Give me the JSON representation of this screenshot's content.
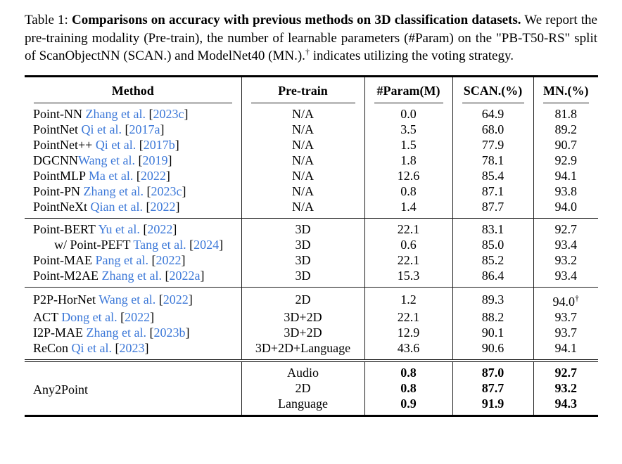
{
  "colors": {
    "link_blue": "#3c78d8",
    "rule_dark": "#1a1a1a"
  },
  "caption": {
    "prefix": "Table 1: ",
    "title_bold": "Comparisons on accuracy with previous methods on 3D classification datasets.",
    "body_before_dagger": " We report the pre-training modality (Pre-train), the number of learnable parameters (#Param) on the \"PB-T50-RS\" split of ScanObjectNN (SCAN.) and ModelNet40 (MN.).",
    "dagger": "†",
    "body_after_dagger": " indicates utilizing the voting strategy."
  },
  "table": {
    "columns": [
      "Method",
      "Pre-train",
      "#Param(M)",
      "SCAN.(%)",
      "MN.(%)"
    ],
    "groups": [
      {
        "rows": [
          {
            "method": [
              [
                "Point-NN ",
                "k"
              ],
              [
                "Zhang et al.",
                "b"
              ],
              [
                " [",
                "k"
              ],
              [
                "2023c",
                "b"
              ],
              [
                "]",
                "k"
              ]
            ],
            "cells": [
              "N/A",
              "0.0",
              "64.9",
              "81.8"
            ]
          },
          {
            "method": [
              [
                "PointNet ",
                "k"
              ],
              [
                "Qi et al.",
                "b"
              ],
              [
                " [",
                "k"
              ],
              [
                "2017a",
                "b"
              ],
              [
                "]",
                "k"
              ]
            ],
            "cells": [
              "N/A",
              "3.5",
              "68.0",
              "89.2"
            ]
          },
          {
            "method": [
              [
                "PointNet++ ",
                "k"
              ],
              [
                "Qi et al.",
                "b"
              ],
              [
                " [",
                "k"
              ],
              [
                "2017b",
                "b"
              ],
              [
                "]",
                "k"
              ]
            ],
            "cells": [
              "N/A",
              "1.5",
              "77.9",
              "90.7"
            ]
          },
          {
            "method": [
              [
                "DGCNN",
                "k"
              ],
              [
                "Wang et al.",
                "b"
              ],
              [
                " [",
                "k"
              ],
              [
                "2019",
                "b"
              ],
              [
                "]",
                "k"
              ]
            ],
            "cells": [
              "N/A",
              "1.8",
              "78.1",
              "92.9"
            ]
          },
          {
            "method": [
              [
                "PointMLP ",
                "k"
              ],
              [
                "Ma et al.",
                "b"
              ],
              [
                " [",
                "k"
              ],
              [
                "2022",
                "b"
              ],
              [
                "]",
                "k"
              ]
            ],
            "cells": [
              "N/A",
              "12.6",
              "85.4",
              "94.1"
            ]
          },
          {
            "method": [
              [
                "Point-PN ",
                "k"
              ],
              [
                "Zhang et al.",
                "b"
              ],
              [
                " [",
                "k"
              ],
              [
                "2023c",
                "b"
              ],
              [
                "]",
                "k"
              ]
            ],
            "cells": [
              "N/A",
              "0.8",
              "87.1",
              "93.8"
            ]
          },
          {
            "method": [
              [
                "PointNeXt ",
                "k"
              ],
              [
                "Qian et al.",
                "b"
              ],
              [
                " [",
                "k"
              ],
              [
                "2022",
                "b"
              ],
              [
                "]",
                "k"
              ]
            ],
            "cells": [
              "N/A",
              "1.4",
              "87.7",
              "94.0"
            ]
          }
        ]
      },
      {
        "rows": [
          {
            "method": [
              [
                "Point-BERT ",
                "k"
              ],
              [
                "Yu et al.",
                "b"
              ],
              [
                " [",
                "k"
              ],
              [
                "2022",
                "b"
              ],
              [
                "]",
                "k"
              ]
            ],
            "cells": [
              "3D",
              "22.1",
              "83.1",
              "92.7"
            ]
          },
          {
            "method": [
              [
                "w/ Point-PEFT ",
                "k"
              ],
              [
                "Tang et al.",
                "b"
              ],
              [
                " [",
                "k"
              ],
              [
                "2024",
                "b"
              ],
              [
                "]",
                "k"
              ]
            ],
            "indent": true,
            "cells": [
              "3D",
              "0.6",
              "85.0",
              "93.4"
            ]
          },
          {
            "method": [
              [
                "Point-MAE ",
                "k"
              ],
              [
                "Pang et al.",
                "b"
              ],
              [
                " [",
                "k"
              ],
              [
                "2022",
                "b"
              ],
              [
                "]",
                "k"
              ]
            ],
            "cells": [
              "3D",
              "22.1",
              "85.2",
              "93.2"
            ]
          },
          {
            "method": [
              [
                "Point-M2AE ",
                "k"
              ],
              [
                "Zhang et al.",
                "b"
              ],
              [
                " [",
                "k"
              ],
              [
                "2022a",
                "b"
              ],
              [
                "]",
                "k"
              ]
            ],
            "cells": [
              "3D",
              "15.3",
              "86.4",
              "93.4"
            ]
          }
        ]
      },
      {
        "rows": [
          {
            "method": [
              [
                "P2P-HorNet ",
                "k"
              ],
              [
                "Wang et al.",
                "b"
              ],
              [
                " [",
                "k"
              ],
              [
                "2022",
                "b"
              ],
              [
                "]",
                "k"
              ]
            ],
            "cells": [
              "2D",
              "1.2",
              "89.3",
              "94.0†"
            ]
          },
          {
            "method": [
              [
                "ACT ",
                "k"
              ],
              [
                "Dong et al.",
                "b"
              ],
              [
                " [",
                "k"
              ],
              [
                "2022",
                "b"
              ],
              [
                "]",
                "k"
              ]
            ],
            "cells": [
              "3D+2D",
              "22.1",
              "88.2",
              "93.7"
            ]
          },
          {
            "method": [
              [
                "I2P-MAE ",
                "k"
              ],
              [
                "Zhang et al.",
                "b"
              ],
              [
                " [",
                "k"
              ],
              [
                "2023b",
                "b"
              ],
              [
                "]",
                "k"
              ]
            ],
            "cells": [
              "3D+2D",
              "12.9",
              "90.1",
              "93.7"
            ]
          },
          {
            "method": [
              [
                "ReCon ",
                "k"
              ],
              [
                "Qi et al.",
                "b"
              ],
              [
                " [",
                "k"
              ],
              [
                "2023",
                "b"
              ],
              [
                "]",
                "k"
              ]
            ],
            "cells": [
              "3D+2D+Language",
              "43.6",
              "90.6",
              "94.1"
            ]
          }
        ]
      },
      {
        "merged_method": "Any2Point",
        "double_rule": true,
        "bold_values": true,
        "rows": [
          {
            "cells": [
              "Audio",
              "0.8",
              "87.0",
              "92.7"
            ]
          },
          {
            "cells": [
              "2D",
              "0.8",
              "87.7",
              "93.2"
            ]
          },
          {
            "cells": [
              "Language",
              "0.9",
              "91.9",
              "94.3"
            ]
          }
        ]
      }
    ]
  }
}
